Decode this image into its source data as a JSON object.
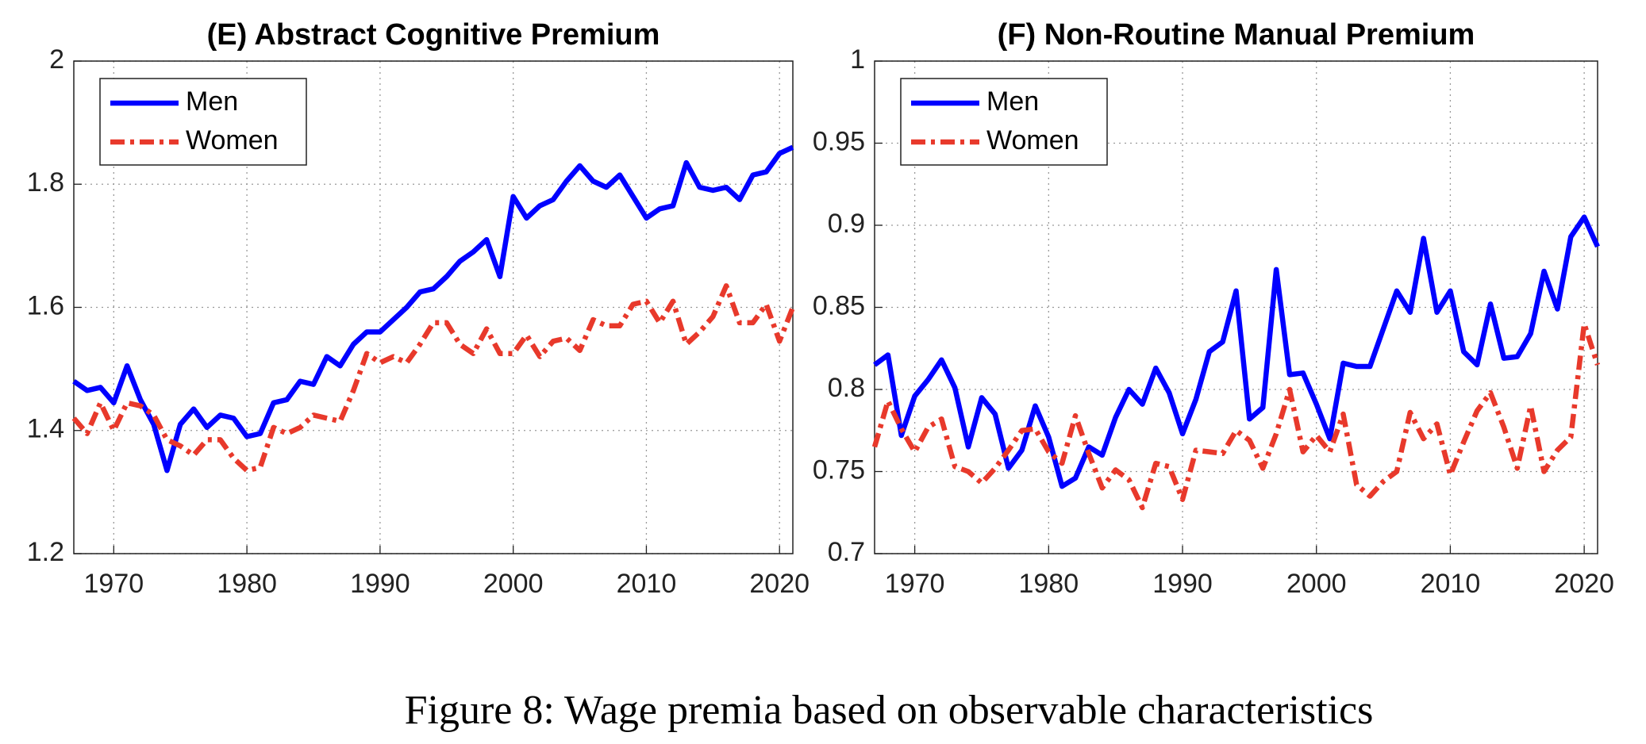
{
  "chart_data": [
    {
      "type": "line",
      "title": "(E) Abstract Cognitive Premium",
      "legend": "upper left",
      "grid": true,
      "x": [
        1967,
        1968,
        1969,
        1970,
        1971,
        1972,
        1973,
        1974,
        1975,
        1976,
        1977,
        1978,
        1979,
        1980,
        1981,
        1982,
        1983,
        1984,
        1985,
        1986,
        1987,
        1988,
        1989,
        1990,
        1991,
        1992,
        1993,
        1994,
        1995,
        1996,
        1997,
        1998,
        1999,
        2000,
        2001,
        2002,
        2003,
        2004,
        2005,
        2006,
        2007,
        2008,
        2009,
        2010,
        2011,
        2012,
        2013,
        2014,
        2015,
        2016,
        2017,
        2018,
        2019,
        2020,
        2021
      ],
      "xlim": [
        1967,
        2021
      ],
      "xticks": [
        1970,
        1980,
        1990,
        2000,
        2010,
        2020
      ],
      "ylim": [
        1.2,
        2
      ],
      "yticks": [
        1.2,
        1.4,
        1.6,
        1.8,
        2
      ],
      "series": [
        {
          "name": "Men",
          "color": "#0000ff",
          "linestyle": "solid",
          "values": [
            1.48,
            1.465,
            1.47,
            1.445,
            1.505,
            1.45,
            1.41,
            1.335,
            1.41,
            1.435,
            1.405,
            1.425,
            1.42,
            1.39,
            1.395,
            1.445,
            1.45,
            1.48,
            1.475,
            1.52,
            1.505,
            1.54,
            1.56,
            1.56,
            1.58,
            1.6,
            1.625,
            1.63,
            1.65,
            1.675,
            1.69,
            1.71,
            1.65,
            1.78,
            1.745,
            1.765,
            1.775,
            1.805,
            1.83,
            1.805,
            1.795,
            1.815,
            1.78,
            1.745,
            1.76,
            1.765,
            1.835,
            1.795,
            1.79,
            1.795,
            1.775,
            1.815,
            1.82,
            1.85,
            1.86
          ]
        },
        {
          "name": "Women",
          "color": "#e8392b",
          "linestyle": "dashdot",
          "values": [
            1.42,
            1.395,
            1.445,
            1.4,
            1.445,
            1.44,
            1.425,
            1.385,
            1.375,
            1.36,
            1.385,
            1.385,
            1.355,
            1.335,
            1.34,
            1.405,
            1.395,
            1.405,
            1.425,
            1.42,
            1.415,
            1.465,
            1.525,
            1.51,
            1.52,
            1.51,
            1.54,
            1.575,
            1.575,
            1.54,
            1.525,
            1.565,
            1.525,
            1.525,
            1.555,
            1.52,
            1.545,
            1.55,
            1.53,
            1.58,
            1.57,
            1.57,
            1.605,
            1.61,
            1.575,
            1.61,
            1.54,
            1.56,
            1.585,
            1.635,
            1.575,
            1.575,
            1.605,
            1.545,
            1.6
          ]
        }
      ]
    },
    {
      "type": "line",
      "title": "(F) Non-Routine Manual Premium",
      "legend": "upper left",
      "grid": true,
      "x": [
        1967,
        1968,
        1969,
        1970,
        1971,
        1972,
        1973,
        1974,
        1975,
        1976,
        1977,
        1978,
        1979,
        1980,
        1981,
        1982,
        1983,
        1984,
        1985,
        1986,
        1987,
        1988,
        1989,
        1990,
        1991,
        1992,
        1993,
        1994,
        1995,
        1996,
        1997,
        1998,
        1999,
        2000,
        2001,
        2002,
        2003,
        2004,
        2005,
        2006,
        2007,
        2008,
        2009,
        2010,
        2011,
        2012,
        2013,
        2014,
        2015,
        2016,
        2017,
        2018,
        2019,
        2020,
        2021
      ],
      "xlim": [
        1967,
        2021
      ],
      "xticks": [
        1970,
        1980,
        1990,
        2000,
        2010,
        2020
      ],
      "ylim": [
        0.7,
        1
      ],
      "yticks": [
        0.7,
        0.75,
        0.8,
        0.85,
        0.9,
        0.95,
        1
      ],
      "series": [
        {
          "name": "Men",
          "color": "#0000ff",
          "linestyle": "solid",
          "values": [
            0.815,
            0.821,
            0.772,
            0.796,
            0.806,
            0.818,
            0.801,
            0.765,
            0.795,
            0.785,
            0.752,
            0.763,
            0.79,
            0.771,
            0.741,
            0.746,
            0.765,
            0.76,
            0.783,
            0.8,
            0.791,
            0.813,
            0.798,
            0.773,
            0.794,
            0.823,
            0.829,
            0.86,
            0.782,
            0.789,
            0.873,
            0.809,
            0.81,
            0.791,
            0.77,
            0.816,
            0.814,
            0.814,
            0.837,
            0.86,
            0.847,
            0.892,
            0.847,
            0.86,
            0.823,
            0.815,
            0.852,
            0.819,
            0.82,
            0.834,
            0.872,
            0.849,
            0.893,
            0.905,
            0.887
          ]
        },
        {
          "name": "Women",
          "color": "#e8392b",
          "linestyle": "dashdot",
          "values": [
            0.765,
            0.793,
            0.776,
            0.762,
            0.777,
            0.782,
            0.753,
            0.75,
            0.743,
            0.752,
            0.763,
            0.775,
            0.776,
            0.762,
            0.755,
            0.784,
            0.761,
            0.74,
            0.751,
            0.745,
            0.728,
            0.755,
            0.753,
            0.733,
            0.763,
            0.762,
            0.761,
            0.775,
            0.769,
            0.752,
            0.773,
            0.8,
            0.762,
            0.772,
            0.762,
            0.785,
            0.742,
            0.735,
            0.744,
            0.75,
            0.786,
            0.77,
            0.779,
            0.748,
            0.768,
            0.787,
            0.798,
            0.777,
            0.752,
            0.79,
            0.75,
            0.763,
            0.771,
            0.84,
            0.815
          ]
        }
      ]
    }
  ],
  "caption": "Figure 8: Wage premia based on observable characteristics"
}
